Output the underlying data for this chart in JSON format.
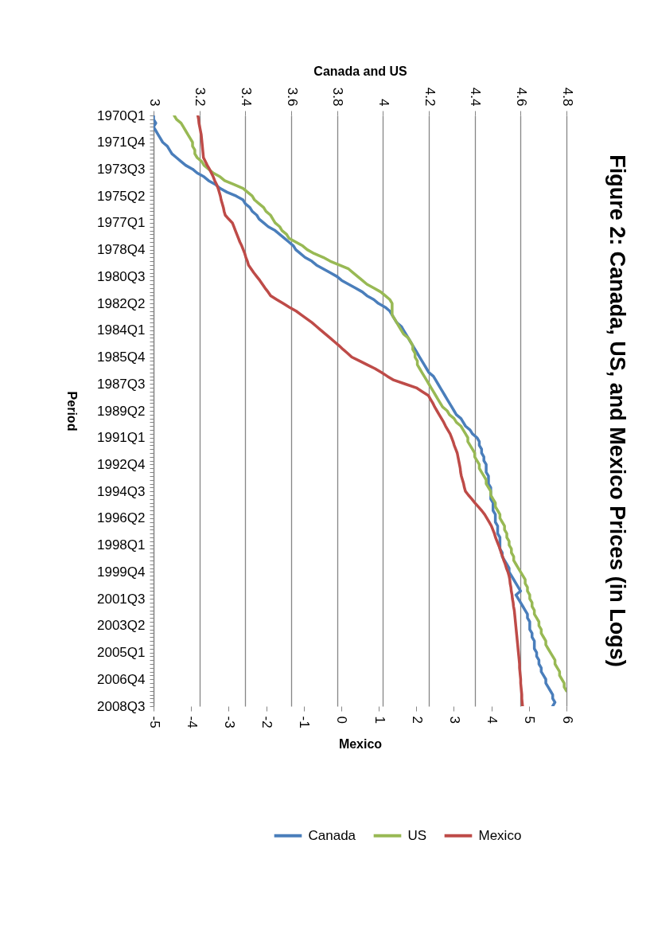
{
  "chart_data": {
    "type": "line",
    "orientation": "horizontal",
    "title": "Figure 2: Canada, US, and Mexico Prices (in Logs)",
    "ylabel": "Period",
    "x2label": "Canada and US",
    "xlabel": "Mexico",
    "categories": [
      "1970Q1",
      null,
      null,
      null,
      null,
      null,
      null,
      "1971Q4",
      null,
      null,
      null,
      null,
      null,
      null,
      "1973Q3",
      null,
      null,
      null,
      null,
      null,
      null,
      "1975Q2",
      null,
      null,
      null,
      null,
      null,
      null,
      "1977Q1",
      null,
      null,
      null,
      null,
      null,
      null,
      "1978Q4",
      null,
      null,
      null,
      null,
      null,
      null,
      "1980Q3",
      null,
      null,
      null,
      null,
      null,
      null,
      "1982Q2",
      null,
      null,
      null,
      null,
      null,
      null,
      "1984Q1",
      null,
      null,
      null,
      null,
      null,
      null,
      "1985Q4",
      null,
      null,
      null,
      null,
      null,
      null,
      "1987Q3",
      null,
      null,
      null,
      null,
      null,
      null,
      "1989Q2",
      null,
      null,
      null,
      null,
      null,
      null,
      "1991Q1",
      null,
      null,
      null,
      null,
      null,
      null,
      "1992Q4",
      null,
      null,
      null,
      null,
      null,
      null,
      "1994Q3",
      null,
      null,
      null,
      null,
      null,
      null,
      "1996Q2",
      null,
      null,
      null,
      null,
      null,
      null,
      "1998Q1",
      null,
      null,
      null,
      null,
      null,
      null,
      "1999Q4",
      null,
      null,
      null,
      null,
      null,
      null,
      "2001Q3",
      null,
      null,
      null,
      null,
      null,
      null,
      "2003Q2",
      null,
      null,
      null,
      null,
      null,
      null,
      "2005Q1",
      null,
      null,
      null,
      null,
      null,
      null,
      "2006Q4",
      null,
      null,
      null,
      null,
      null,
      null,
      "2008Q3"
    ],
    "series": [
      {
        "name": "Canada",
        "color": "#4a7ebb",
        "axis": "x2",
        "values": [
          3.0,
          3.0,
          3.01,
          3.0,
          3.01,
          3.02,
          3.03,
          3.04,
          3.06,
          3.07,
          3.08,
          3.1,
          3.12,
          3.14,
          3.17,
          3.19,
          3.22,
          3.24,
          3.27,
          3.29,
          3.32,
          3.36,
          3.39,
          3.4,
          3.42,
          3.43,
          3.45,
          3.46,
          3.48,
          3.5,
          3.53,
          3.55,
          3.57,
          3.59,
          3.61,
          3.62,
          3.64,
          3.66,
          3.69,
          3.71,
          3.74,
          3.77,
          3.8,
          3.82,
          3.85,
          3.88,
          3.91,
          3.93,
          3.96,
          3.98,
          4.01,
          4.03,
          4.04,
          4.05,
          4.06,
          4.08,
          4.09,
          4.1,
          4.11,
          4.12,
          4.13,
          4.14,
          4.15,
          4.16,
          4.17,
          4.18,
          4.19,
          4.2,
          4.22,
          4.23,
          4.24,
          4.25,
          4.26,
          4.27,
          4.28,
          4.29,
          4.3,
          4.31,
          4.32,
          4.34,
          4.35,
          4.36,
          4.38,
          4.39,
          4.41,
          4.42,
          4.42,
          4.43,
          4.43,
          4.44,
          4.44,
          4.45,
          4.45,
          4.45,
          4.46,
          4.46,
          4.46,
          4.47,
          4.47,
          4.47,
          4.47,
          4.48,
          4.48,
          4.48,
          4.49,
          4.49,
          4.49,
          4.5,
          4.5,
          4.5,
          4.51,
          4.51,
          4.51,
          4.51,
          4.52,
          4.52,
          4.53,
          4.54,
          4.55,
          4.55,
          4.56,
          4.57,
          4.58,
          4.59,
          4.6,
          4.58,
          4.59,
          4.6,
          4.61,
          4.62,
          4.63,
          4.63,
          4.64,
          4.64,
          4.64,
          4.65,
          4.65,
          4.66,
          4.66,
          4.66,
          4.67,
          4.67,
          4.68,
          4.68,
          4.69,
          4.69,
          4.7,
          4.71,
          4.71,
          4.72,
          4.73,
          4.74,
          4.74,
          4.75,
          4.74
        ]
      },
      {
        "name": "US",
        "color": "#98b954",
        "axis": "x2",
        "values": [
          3.09,
          3.1,
          3.12,
          3.13,
          3.14,
          3.15,
          3.16,
          3.17,
          3.17,
          3.18,
          3.18,
          3.19,
          3.21,
          3.22,
          3.24,
          3.26,
          3.29,
          3.31,
          3.35,
          3.39,
          3.41,
          3.43,
          3.44,
          3.46,
          3.48,
          3.49,
          3.51,
          3.52,
          3.53,
          3.55,
          3.56,
          3.58,
          3.59,
          3.62,
          3.65,
          3.67,
          3.7,
          3.74,
          3.77,
          3.81,
          3.85,
          3.87,
          3.89,
          3.91,
          3.93,
          3.96,
          3.99,
          4.01,
          4.03,
          4.04,
          4.04,
          4.04,
          4.04,
          4.05,
          4.06,
          4.07,
          4.08,
          4.09,
          4.11,
          4.12,
          4.13,
          4.13,
          4.14,
          4.14,
          4.15,
          4.15,
          4.16,
          4.17,
          4.18,
          4.19,
          4.2,
          4.21,
          4.22,
          4.23,
          4.24,
          4.25,
          4.26,
          4.28,
          4.29,
          4.31,
          4.32,
          4.34,
          4.35,
          4.36,
          4.37,
          4.37,
          4.38,
          4.39,
          4.4,
          4.4,
          4.41,
          4.42,
          4.42,
          4.43,
          4.44,
          4.45,
          4.45,
          4.46,
          4.47,
          4.47,
          4.48,
          4.49,
          4.49,
          4.5,
          4.51,
          4.51,
          4.52,
          4.53,
          4.53,
          4.54,
          4.54,
          4.55,
          4.55,
          4.56,
          4.56,
          4.57,
          4.57,
          4.58,
          4.59,
          4.6,
          4.61,
          4.62,
          4.62,
          4.63,
          4.63,
          4.64,
          4.64,
          4.65,
          4.65,
          4.66,
          4.66,
          4.67,
          4.68,
          4.68,
          4.69,
          4.69,
          4.7,
          4.71,
          4.71,
          4.72,
          4.73,
          4.74,
          4.75,
          4.75,
          4.76,
          4.77,
          4.77,
          4.78,
          4.79,
          4.79,
          4.8,
          null,
          null,
          null,
          null
        ]
      },
      {
        "name": "Mexico",
        "color": "#be4b48",
        "values": [
          -3.82,
          -3.8,
          -3.79,
          -3.77,
          -3.75,
          -3.73,
          -3.72,
          -3.71,
          -3.7,
          -3.69,
          -3.68,
          -3.67,
          -3.62,
          -3.57,
          -3.51,
          -3.46,
          -3.41,
          -3.37,
          -3.32,
          -3.28,
          -3.25,
          -3.22,
          -3.2,
          -3.17,
          -3.14,
          -3.12,
          -3.09,
          -3.0,
          -2.9,
          -2.86,
          -2.82,
          -2.78,
          -2.74,
          -2.7,
          -2.65,
          -2.61,
          -2.57,
          -2.54,
          -2.5,
          -2.47,
          -2.4,
          -2.33,
          -2.25,
          -2.17,
          -2.1,
          -2.03,
          -1.95,
          -1.88,
          -1.72,
          -1.55,
          -1.38,
          -1.2,
          -1.06,
          -0.92,
          -0.78,
          -0.66,
          -0.54,
          -0.42,
          -0.3,
          -0.18,
          -0.06,
          0.05,
          0.17,
          0.28,
          0.49,
          0.69,
          0.9,
          1.07,
          1.23,
          1.4,
          1.7,
          2.0,
          2.16,
          2.32,
          2.38,
          2.44,
          2.49,
          2.55,
          2.61,
          2.67,
          2.73,
          2.78,
          2.84,
          2.9,
          2.94,
          2.98,
          3.01,
          3.05,
          3.09,
          3.11,
          3.13,
          3.15,
          3.17,
          3.18,
          3.2,
          3.23,
          3.26,
          3.28,
          3.31,
          3.39,
          3.48,
          3.56,
          3.65,
          3.74,
          3.82,
          3.88,
          3.94,
          4.0,
          4.04,
          4.08,
          4.11,
          4.15,
          4.19,
          4.23,
          4.26,
          4.3,
          4.33,
          4.37,
          4.4,
          4.44,
          4.47,
          4.49,
          4.5,
          4.52,
          4.53,
          4.55,
          4.56,
          4.58,
          4.59,
          4.61,
          4.62,
          4.63,
          4.64,
          4.65,
          4.66,
          4.67,
          4.68,
          4.69,
          4.7,
          4.71,
          4.72,
          4.73,
          4.74,
          4.75,
          4.75,
          4.76,
          4.77,
          4.78,
          4.78,
          4.79,
          4.8,
          4.81,
          4.81,
          4.82,
          4.83
        ]
      }
    ],
    "x2lim": [
      3,
      4.8
    ],
    "x2ticks": [
      3,
      3.2,
      3.4,
      3.6,
      3.8,
      4,
      4.2,
      4.4,
      4.6,
      4.8
    ],
    "xlim": [
      -5,
      6
    ],
    "xticks": [
      -5,
      -4,
      -3,
      -2,
      -1,
      0,
      1,
      2,
      3,
      4,
      5,
      6
    ],
    "grid": "x",
    "legend": "bottom"
  }
}
